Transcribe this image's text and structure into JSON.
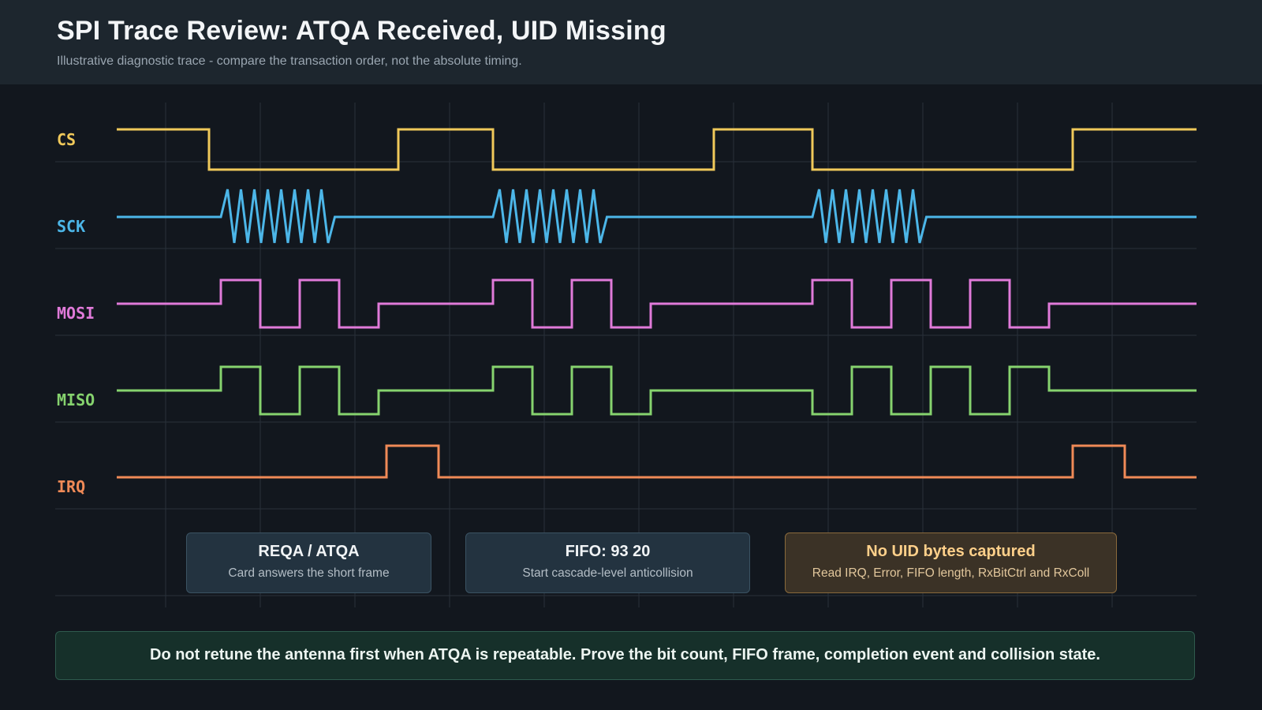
{
  "header": {
    "title": "SPI Trace Review: ATQA Received, UID Missing",
    "subtitle": "Illustrative diagnostic trace - compare the transaction order, not the absolute timing."
  },
  "signals": [
    {
      "name": "CS",
      "color": "#f0c95a"
    },
    {
      "name": "SCK",
      "color": "#4cb6e8"
    },
    {
      "name": "MOSI",
      "color": "#e07ad9"
    },
    {
      "name": "MISO",
      "color": "#86d36e"
    },
    {
      "name": "IRQ",
      "color": "#f08a57"
    }
  ],
  "annotations": [
    {
      "title": "REQA / ATQA",
      "description": "Card answers the short frame",
      "style": "neutral"
    },
    {
      "title": "FIFO: 93 20",
      "description": "Start cascade-level anticollision",
      "style": "neutral"
    },
    {
      "title": "No UID bytes captured",
      "description": "Read IRQ, Error, FIFO length, RxBitCtrl and RxColl",
      "style": "warning"
    }
  ],
  "footer": {
    "text": "Do not retune the antenna first when ATQA is repeatable. Prove the bit count, FIFO frame, completion event and collision state."
  },
  "colors": {
    "background": "#12171e",
    "header": "#1d262e",
    "grid": "#29313a",
    "warning": "#ffd08a",
    "footer_bg": "#16302a"
  }
}
